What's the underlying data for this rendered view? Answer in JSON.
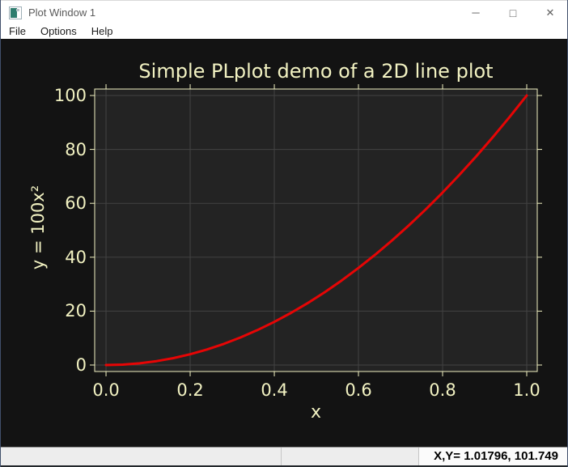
{
  "window": {
    "title": "Plot Window 1"
  },
  "icons": {
    "minimize": "─",
    "maximize": "□",
    "close": "✕"
  },
  "menu": {
    "items": [
      {
        "label": "File"
      },
      {
        "label": "Options"
      },
      {
        "label": "Help"
      }
    ]
  },
  "statusbar": {
    "coords_label": "X,Y= 1.01796, 101.749"
  },
  "chart_data": {
    "type": "line",
    "title": "Simple PLplot demo of a 2D line plot",
    "xlabel": "x",
    "ylabel": "y = 100x²",
    "xlim": [
      -0.027,
      1.025
    ],
    "ylim": [
      -2.4,
      102.4
    ],
    "grid": true,
    "x_ticks": [
      {
        "value": 0.0,
        "label": "0.0"
      },
      {
        "value": 0.2,
        "label": "0.2"
      },
      {
        "value": 0.4,
        "label": "0.4"
      },
      {
        "value": 0.6,
        "label": "0.6"
      },
      {
        "value": 0.8,
        "label": "0.8"
      },
      {
        "value": 1.0,
        "label": "1.0"
      }
    ],
    "y_ticks": [
      {
        "value": 0,
        "label": "0"
      },
      {
        "value": 20,
        "label": "20"
      },
      {
        "value": 40,
        "label": "40"
      },
      {
        "value": 60,
        "label": "60"
      },
      {
        "value": 80,
        "label": "80"
      },
      {
        "value": 100,
        "label": "100"
      }
    ],
    "series": [
      {
        "name": "y = 100x²",
        "color": "#e60505",
        "x": [
          0,
          0.04,
          0.08,
          0.12,
          0.16,
          0.2,
          0.24,
          0.28,
          0.32,
          0.36,
          0.4,
          0.44,
          0.48,
          0.52,
          0.56,
          0.6,
          0.64,
          0.68,
          0.72,
          0.76,
          0.8,
          0.84,
          0.88,
          0.92,
          0.96,
          1
        ],
        "y": [
          0,
          0.16,
          0.64,
          1.44,
          2.56,
          4,
          5.76,
          7.84,
          10.24,
          12.96,
          16,
          19.36,
          23.04,
          27.04,
          31.36,
          36,
          40.96,
          46.24,
          51.84,
          57.76,
          64,
          70.56,
          77.44,
          84.64,
          92.16,
          100
        ]
      }
    ],
    "colors": {
      "canvas_background": "#131313",
      "plot_background": "#232323",
      "axis": "#f2f2c2",
      "grid": "#434343",
      "text": "#f2f2c2",
      "line": "#e60505"
    }
  }
}
